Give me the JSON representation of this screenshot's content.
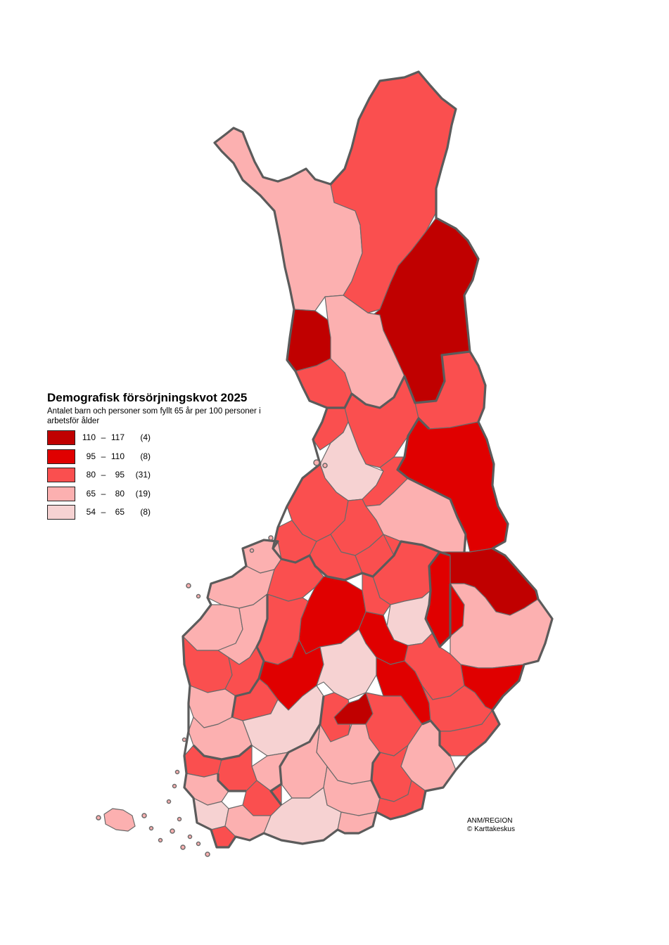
{
  "legend": {
    "title": "Demografisk försörjningskvot 2025",
    "subtitle": "Antalet barn och personer som fyllt 65 år per 100 personer i arbetsför ålder",
    "classes": [
      {
        "low": "110",
        "dash": "–",
        "high": "117",
        "count": "(4)",
        "color": "#c00000"
      },
      {
        "low": "95",
        "dash": "–",
        "high": "110",
        "count": "(8)",
        "color": "#e00000"
      },
      {
        "low": "80",
        "dash": "–",
        "high": "95",
        "count": "(31)",
        "color": "#fa4f4f"
      },
      {
        "low": "65",
        "dash": "–",
        "high": "80",
        "count": "(19)",
        "color": "#fcb0b0"
      },
      {
        "low": "54",
        "dash": "–",
        "high": "65",
        "count": "(8)",
        "color": "#f6d2d2"
      }
    ]
  },
  "credits": {
    "line1": "ANM/REGION",
    "line2": "© Karttakeskus"
  }
}
